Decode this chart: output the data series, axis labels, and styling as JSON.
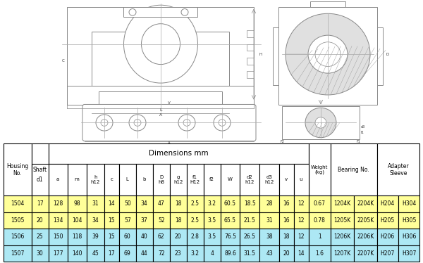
{
  "rows": [
    [
      "1504",
      "17",
      "128",
      "98",
      "31",
      "14",
      "50",
      "34",
      "47",
      "18",
      "2.5",
      "3.2",
      "60.5",
      "18.5",
      "28",
      "16",
      "12",
      "0.67",
      "1204K",
      "2204K",
      "H204",
      "H304"
    ],
    [
      "1505",
      "20",
      "134",
      "104",
      "34",
      "15",
      "57",
      "37",
      "52",
      "18",
      "2.5",
      "3.5",
      "65.5",
      "21.5",
      "31",
      "16",
      "12",
      "0.78",
      "1205K",
      "2205K",
      "H205",
      "H305"
    ],
    [
      "1506",
      "25",
      "150",
      "118",
      "39",
      "15",
      "60",
      "40",
      "62",
      "20",
      "2.8",
      "3.5",
      "76.5",
      "26.5",
      "38",
      "18",
      "12",
      "1",
      "1206K",
      "2206K",
      "H206",
      "H306"
    ],
    [
      "1507",
      "30",
      "177",
      "140",
      "45",
      "17",
      "69",
      "44",
      "72",
      "23",
      "3.2",
      "4",
      "89.6",
      "31.5",
      "43",
      "20",
      "14",
      "1.6",
      "1207K",
      "2207K",
      "H207",
      "H307"
    ]
  ],
  "row_colors": [
    "#FFFF99",
    "#FFFF99",
    "#ADE8F4",
    "#ADE8F4"
  ],
  "header_bg": "#FFFFFF",
  "border_color": "#000000",
  "image_bg": "#FFFFFF",
  "dim_subs": [
    "a",
    "m",
    "h\nh12",
    "c",
    "L",
    "b",
    "D\nh8",
    "g\nh12",
    "f1\nH12",
    "f2",
    "W",
    "d2\nh12",
    "d3\nh12",
    "v",
    "u"
  ],
  "top_headers": [
    "Housing\nNo.",
    "Shaft",
    "Dimensions mm",
    "Weight\n(kg)",
    "Bearing No.",
    "Adapter\nSleeve"
  ],
  "col_widths_raw": [
    6.3,
    3.8,
    4.3,
    4.3,
    4.0,
    3.3,
    3.8,
    3.8,
    3.8,
    3.8,
    3.8,
    3.8,
    4.4,
    4.4,
    4.4,
    3.3,
    3.3,
    5.0,
    5.2,
    5.2,
    4.8,
    4.8
  ]
}
